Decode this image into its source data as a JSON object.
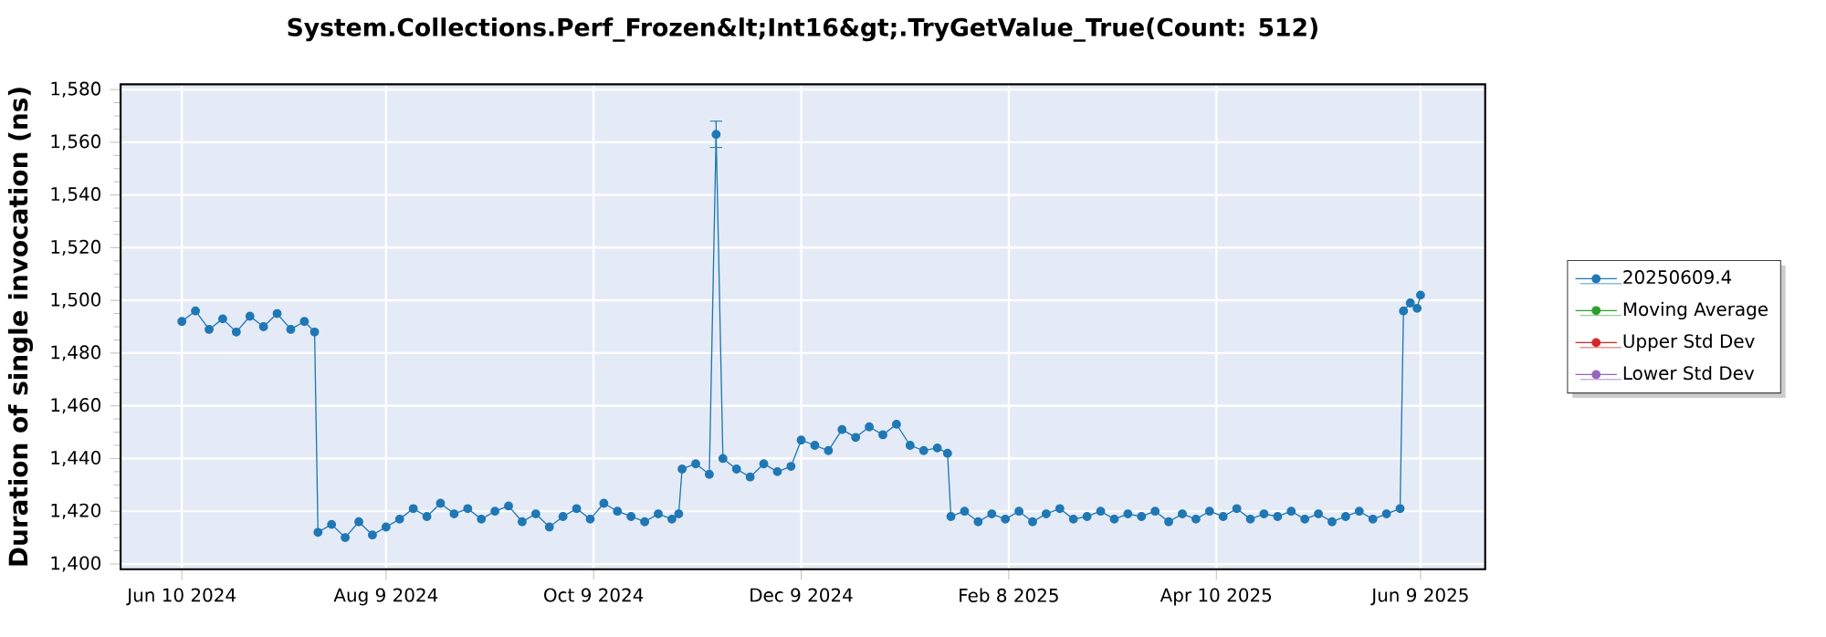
{
  "chart_data": {
    "type": "line",
    "title": "System.Collections.Perf_Frozen&lt;Int16&gt;.TryGetValue_True(Count: 512)",
    "ylabel": "Duration of single invocation (ns)",
    "x": [
      "2024-06-10",
      "2024-06-14",
      "2024-06-18",
      "2024-06-22",
      "2024-06-26",
      "2024-06-30",
      "2024-07-04",
      "2024-07-08",
      "2024-07-12",
      "2024-07-16",
      "2024-07-19",
      "2024-07-20",
      "2024-07-24",
      "2024-07-28",
      "2024-08-01",
      "2024-08-05",
      "2024-08-09",
      "2024-08-13",
      "2024-08-17",
      "2024-08-21",
      "2024-08-25",
      "2024-08-29",
      "2024-09-02",
      "2024-09-06",
      "2024-09-10",
      "2024-09-14",
      "2024-09-18",
      "2024-09-22",
      "2024-09-26",
      "2024-09-30",
      "2024-10-04",
      "2024-10-08",
      "2024-10-12",
      "2024-10-16",
      "2024-10-20",
      "2024-10-24",
      "2024-10-28",
      "2024-11-01",
      "2024-11-03",
      "2024-11-04",
      "2024-11-08",
      "2024-11-12",
      "2024-11-14",
      "2024-11-16",
      "2024-11-20",
      "2024-11-24",
      "2024-11-28",
      "2024-12-02",
      "2024-12-06",
      "2024-12-09",
      "2024-12-13",
      "2024-12-17",
      "2024-12-21",
      "2024-12-25",
      "2024-12-29",
      "2025-01-02",
      "2025-01-06",
      "2025-01-10",
      "2025-01-14",
      "2025-01-18",
      "2025-01-21",
      "2025-01-22",
      "2025-01-26",
      "2025-01-30",
      "2025-02-03",
      "2025-02-07",
      "2025-02-11",
      "2025-02-15",
      "2025-02-19",
      "2025-02-23",
      "2025-02-27",
      "2025-03-03",
      "2025-03-07",
      "2025-03-11",
      "2025-03-15",
      "2025-03-19",
      "2025-03-23",
      "2025-03-27",
      "2025-03-31",
      "2025-04-04",
      "2025-04-08",
      "2025-04-12",
      "2025-04-16",
      "2025-04-20",
      "2025-04-24",
      "2025-04-28",
      "2025-05-02",
      "2025-05-06",
      "2025-05-10",
      "2025-05-14",
      "2025-05-18",
      "2025-05-22",
      "2025-05-26",
      "2025-05-30",
      "2025-06-03",
      "2025-06-04",
      "2025-06-06",
      "2025-06-08",
      "2025-06-09"
    ],
    "series": [
      {
        "name": "20250609.4",
        "color": "#1f77b4",
        "values": [
          1492,
          1496,
          1489,
          1493,
          1488,
          1494,
          1490,
          1495,
          1489,
          1492,
          1488,
          1412,
          1415,
          1410,
          1416,
          1411,
          1414,
          1417,
          1421,
          1418,
          1423,
          1419,
          1421,
          1417,
          1420,
          1422,
          1416,
          1419,
          1414,
          1418,
          1421,
          1417,
          1423,
          1420,
          1418,
          1416,
          1419,
          1417,
          1419,
          1436,
          1438,
          1434,
          1563,
          1440,
          1436,
          1433,
          1438,
          1435,
          1437,
          1447,
          1445,
          1443,
          1451,
          1448,
          1452,
          1449,
          1453,
          1445,
          1443,
          1444,
          1442,
          1418,
          1420,
          1416,
          1419,
          1417,
          1420,
          1416,
          1419,
          1421,
          1417,
          1418,
          1420,
          1417,
          1419,
          1418,
          1420,
          1416,
          1419,
          1417,
          1420,
          1418,
          1421,
          1417,
          1419,
          1418,
          1420,
          1417,
          1419,
          1416,
          1418,
          1420,
          1417,
          1419,
          1421,
          1496,
          1499,
          1497,
          1502
        ],
        "errors": [
          null,
          null,
          null,
          null,
          null,
          null,
          null,
          null,
          null,
          null,
          null,
          null,
          null,
          null,
          null,
          null,
          null,
          null,
          null,
          null,
          null,
          null,
          null,
          null,
          null,
          null,
          null,
          null,
          null,
          null,
          null,
          null,
          null,
          null,
          null,
          null,
          null,
          null,
          null,
          null,
          null,
          null,
          5,
          null,
          null,
          null,
          null,
          null,
          null,
          null,
          null,
          null,
          null,
          null,
          null,
          null,
          null,
          null,
          null,
          null,
          null,
          null,
          null,
          null,
          null,
          null,
          null,
          null,
          null,
          null,
          null,
          null,
          null,
          null,
          null,
          null,
          null,
          null,
          null,
          null,
          null,
          null,
          null,
          null,
          null,
          null,
          null,
          null,
          null,
          null,
          null,
          null,
          null,
          null,
          null,
          null,
          null,
          null,
          null
        ]
      },
      {
        "name": "Moving Average",
        "color": "#2ca02c",
        "values": [
          null,
          null,
          null,
          null,
          null,
          null,
          null,
          null,
          null,
          null,
          null,
          null,
          null,
          null,
          null,
          null,
          null,
          null,
          null,
          null,
          null,
          null,
          null,
          null,
          null,
          null,
          null,
          null,
          null,
          null,
          null,
          null,
          null,
          null,
          null,
          null,
          null,
          null,
          null,
          null,
          null,
          null,
          null,
          null,
          null,
          null,
          null,
          null,
          null,
          null,
          null,
          null,
          null,
          null,
          null,
          null,
          null,
          null,
          null,
          null,
          null,
          null,
          null,
          null,
          null,
          null,
          null,
          null,
          null,
          null,
          null,
          null,
          null,
          null,
          null,
          null,
          null,
          null,
          null,
          null,
          null,
          null,
          null,
          null,
          null,
          null,
          null,
          null,
          null,
          null,
          null,
          null,
          null,
          null,
          null,
          null,
          null,
          null,
          null
        ]
      },
      {
        "name": "Upper Std Dev",
        "color": "#d62728",
        "values": [
          null,
          null,
          null,
          null,
          null,
          null,
          null,
          null,
          null,
          null,
          null,
          null,
          null,
          null,
          null,
          null,
          null,
          null,
          null,
          null,
          null,
          null,
          null,
          null,
          null,
          null,
          null,
          null,
          null,
          null,
          null,
          null,
          null,
          null,
          null,
          null,
          null,
          null,
          null,
          null,
          null,
          null,
          null,
          null,
          null,
          null,
          null,
          null,
          null,
          null,
          null,
          null,
          null,
          null,
          null,
          null,
          null,
          null,
          null,
          null,
          null,
          null,
          null,
          null,
          null,
          null,
          null,
          null,
          null,
          null,
          null,
          null,
          null,
          null,
          null,
          null,
          null,
          null,
          null,
          null,
          null,
          null,
          null,
          null,
          null,
          null,
          null,
          null,
          null,
          null,
          null,
          null,
          null,
          null,
          null,
          null,
          null,
          null,
          null
        ]
      },
      {
        "name": "Lower Std Dev",
        "color": "#9467bd",
        "values": [
          null,
          null,
          null,
          null,
          null,
          null,
          null,
          null,
          null,
          null,
          null,
          null,
          null,
          null,
          null,
          null,
          null,
          null,
          null,
          null,
          null,
          null,
          null,
          null,
          null,
          null,
          null,
          null,
          null,
          null,
          null,
          null,
          null,
          null,
          null,
          null,
          null,
          null,
          null,
          null,
          null,
          null,
          null,
          null,
          null,
          null,
          null,
          null,
          null,
          null,
          null,
          null,
          null,
          null,
          null,
          null,
          null,
          null,
          null,
          null,
          null,
          null,
          null,
          null,
          null,
          null,
          null,
          null,
          null,
          null,
          null,
          null,
          null,
          null,
          null,
          null,
          null,
          null,
          null,
          null,
          null,
          null,
          null,
          null,
          null,
          null,
          null,
          null,
          null,
          null,
          null,
          null,
          null,
          null,
          null,
          null,
          null,
          null,
          null
        ]
      }
    ],
    "xlim": [
      "2024-05-23",
      "2025-06-28"
    ],
    "xticks": [
      {
        "value": "2024-06-10",
        "label": "Jun 10 2024"
      },
      {
        "value": "2024-08-09",
        "label": "Aug 9 2024"
      },
      {
        "value": "2024-10-09",
        "label": "Oct 9 2024"
      },
      {
        "value": "2024-12-09",
        "label": "Dec 9 2024"
      },
      {
        "value": "2025-02-08",
        "label": "Feb 8 2025"
      },
      {
        "value": "2025-04-10",
        "label": "Apr 10 2025"
      },
      {
        "value": "2025-06-09",
        "label": "Jun 9 2025"
      }
    ],
    "ylim": [
      1398,
      1582
    ],
    "yticks": [
      {
        "value": 1400,
        "label": "1,400"
      },
      {
        "value": 1420,
        "label": "1,420"
      },
      {
        "value": 1440,
        "label": "1,440"
      },
      {
        "value": 1460,
        "label": "1,460"
      },
      {
        "value": 1480,
        "label": "1,480"
      },
      {
        "value": 1500,
        "label": "1,500"
      },
      {
        "value": 1520,
        "label": "1,520"
      },
      {
        "value": 1540,
        "label": "1,540"
      },
      {
        "value": 1560,
        "label": "1,560"
      },
      {
        "value": 1580,
        "label": "1,580"
      }
    ],
    "grid": true,
    "legend": "right",
    "marker": "circle",
    "line_style": "solid"
  }
}
